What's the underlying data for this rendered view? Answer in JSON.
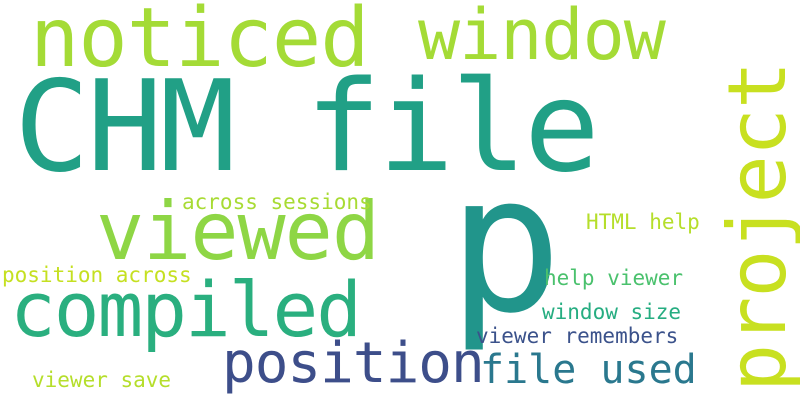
{
  "words": [
    {
      "text": "CHM file",
      "color": "#21a086"
    },
    {
      "text": "p",
      "color": "#21958b"
    },
    {
      "text": "noticed",
      "color": "#a4db36"
    },
    {
      "text": "window",
      "color": "#a4db36"
    },
    {
      "text": "project",
      "color": "#c8e020"
    },
    {
      "text": "viewed",
      "color": "#8ed645"
    },
    {
      "text": "compiled",
      "color": "#2aaf7f"
    },
    {
      "text": "position",
      "color": "#3d4e8a"
    },
    {
      "text": "file used",
      "color": "#2a788e"
    },
    {
      "text": "across sessions",
      "color": "#a8db34"
    },
    {
      "text": "HTML help",
      "color": "#b5de2b"
    },
    {
      "text": "position across",
      "color": "#c5e021"
    },
    {
      "text": "help viewer",
      "color": "#4ac16d"
    },
    {
      "text": "window size",
      "color": "#26ad81"
    },
    {
      "text": "viewer remembers",
      "color": "#3b528b"
    },
    {
      "text": "viewer save",
      "color": "#b5de2b"
    }
  ]
}
